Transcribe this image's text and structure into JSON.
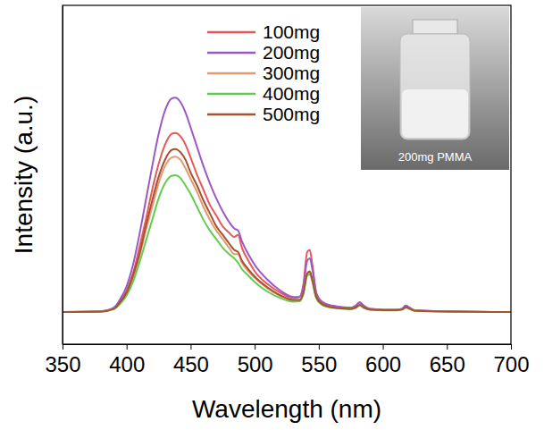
{
  "chart_data": {
    "type": "line",
    "x_label": "Wavelength (nm)",
    "y_label": "Intensity (a.u.)",
    "x": [
      350,
      380,
      390,
      395,
      400,
      405,
      410,
      415,
      420,
      425,
      430,
      435,
      438,
      442,
      446,
      450,
      455,
      460,
      465,
      470,
      475,
      480,
      484,
      487,
      490,
      495,
      500,
      510,
      520,
      530,
      535,
      538,
      541,
      543,
      545,
      548,
      552,
      560,
      575,
      579,
      582,
      585,
      590,
      610,
      615,
      618,
      621,
      625,
      640,
      700
    ],
    "series": [
      {
        "name": "100mg",
        "color": "#e8575a",
        "values": [
          0,
          0.003,
          0.017,
          0.05,
          0.1,
          0.18,
          0.3,
          0.43,
          0.57,
          0.69,
          0.78,
          0.83,
          0.835,
          0.82,
          0.78,
          0.72,
          0.64,
          0.57,
          0.5,
          0.45,
          0.4,
          0.37,
          0.35,
          0.36,
          0.3,
          0.24,
          0.19,
          0.13,
          0.09,
          0.065,
          0.07,
          0.13,
          0.28,
          0.29,
          0.22,
          0.09,
          0.05,
          0.028,
          0.02,
          0.03,
          0.045,
          0.03,
          0.015,
          0.01,
          0.015,
          0.03,
          0.02,
          0.008,
          0.004,
          0
        ]
      },
      {
        "name": "200mg",
        "color": "#9b59c6",
        "values": [
          0,
          0.003,
          0.02,
          0.06,
          0.12,
          0.22,
          0.36,
          0.52,
          0.68,
          0.83,
          0.94,
          0.995,
          1.0,
          0.98,
          0.93,
          0.86,
          0.77,
          0.68,
          0.6,
          0.53,
          0.47,
          0.42,
          0.39,
          0.38,
          0.33,
          0.27,
          0.22,
          0.15,
          0.1,
          0.07,
          0.07,
          0.12,
          0.24,
          0.25,
          0.2,
          0.09,
          0.05,
          0.03,
          0.02,
          0.03,
          0.045,
          0.03,
          0.015,
          0.01,
          0.015,
          0.03,
          0.02,
          0.008,
          0.004,
          0
        ]
      },
      {
        "name": "300mg",
        "color": "#e39a72",
        "values": [
          0,
          0.002,
          0.015,
          0.043,
          0.087,
          0.16,
          0.26,
          0.38,
          0.49,
          0.6,
          0.68,
          0.72,
          0.724,
          0.71,
          0.67,
          0.62,
          0.56,
          0.49,
          0.43,
          0.38,
          0.34,
          0.3,
          0.27,
          0.27,
          0.23,
          0.19,
          0.16,
          0.11,
          0.075,
          0.055,
          0.055,
          0.09,
          0.18,
          0.185,
          0.15,
          0.07,
          0.04,
          0.022,
          0.015,
          0.022,
          0.032,
          0.022,
          0.012,
          0.008,
          0.012,
          0.022,
          0.015,
          0.006,
          0.003,
          0
        ]
      },
      {
        "name": "400mg",
        "color": "#62cc4e",
        "values": [
          0,
          0.002,
          0.013,
          0.038,
          0.077,
          0.14,
          0.23,
          0.33,
          0.43,
          0.53,
          0.6,
          0.635,
          0.638,
          0.625,
          0.59,
          0.55,
          0.49,
          0.43,
          0.38,
          0.34,
          0.3,
          0.27,
          0.25,
          0.23,
          0.2,
          0.17,
          0.14,
          0.095,
          0.065,
          0.048,
          0.05,
          0.085,
          0.17,
          0.175,
          0.14,
          0.065,
          0.036,
          0.02,
          0.014,
          0.02,
          0.03,
          0.02,
          0.011,
          0.007,
          0.011,
          0.02,
          0.014,
          0.006,
          0.003,
          0
        ]
      },
      {
        "name": "500mg",
        "color": "#a5522e",
        "values": [
          0,
          0.002,
          0.015,
          0.046,
          0.091,
          0.17,
          0.27,
          0.4,
          0.52,
          0.63,
          0.71,
          0.755,
          0.76,
          0.745,
          0.71,
          0.65,
          0.59,
          0.52,
          0.46,
          0.4,
          0.36,
          0.32,
          0.29,
          0.28,
          0.24,
          0.2,
          0.165,
          0.115,
          0.078,
          0.056,
          0.056,
          0.09,
          0.18,
          0.19,
          0.15,
          0.07,
          0.04,
          0.022,
          0.015,
          0.022,
          0.033,
          0.022,
          0.012,
          0.008,
          0.012,
          0.023,
          0.015,
          0.006,
          0.003,
          0
        ]
      }
    ],
    "xlim": [
      350,
      700
    ],
    "xticks": [
      350,
      400,
      450,
      500,
      550,
      600,
      650,
      700
    ],
    "ylim": [
      -0.15,
      1.43
    ],
    "yticks": [],
    "tick_labels": "x",
    "legend": "top",
    "annotations": [
      "200mg PMMA"
    ]
  }
}
